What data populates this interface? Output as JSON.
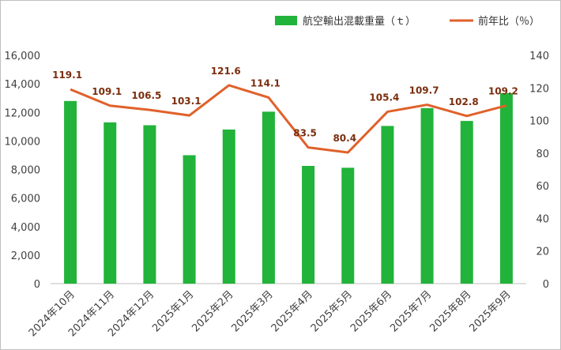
{
  "chart_data": {
    "type": "bar+line",
    "categories": [
      "2024年10月",
      "2024年11月",
      "2024年12月",
      "2025年1月",
      "2025年2月",
      "2025年3月",
      "2025年4月",
      "2025年5月",
      "2025年6月",
      "2025年7月",
      "2025年8月",
      "2025年9月"
    ],
    "series": [
      {
        "name": "航空輸出混載重量（ｔ）",
        "type": "bar",
        "axis": "left",
        "color": "#22b33a",
        "values": [
          12800,
          11300,
          11100,
          9000,
          10800,
          12050,
          8250,
          8120,
          11050,
          12300,
          11400,
          13350
        ]
      },
      {
        "name": "前年比（％）",
        "type": "line",
        "axis": "right",
        "color": "#e0612a",
        "values": [
          119.1,
          109.1,
          106.5,
          103.1,
          121.6,
          114.1,
          83.5,
          80.4,
          105.4,
          109.7,
          102.8,
          109.2
        ],
        "labels": [
          "119.1",
          "109.1",
          "106.5",
          "103.1",
          "121.6",
          "114.1",
          "83.5",
          "80.4",
          "105.4",
          "109.7",
          "102.8",
          "109.2"
        ]
      }
    ],
    "left_axis": {
      "ylim": [
        0,
        16000
      ],
      "ticks": [
        0,
        2000,
        4000,
        6000,
        8000,
        10000,
        12000,
        14000,
        16000
      ],
      "tick_labels": [
        "0",
        "2,000",
        "4,000",
        "6,000",
        "8,000",
        "10,000",
        "12,000",
        "14,000",
        "16,000"
      ]
    },
    "right_axis": {
      "ylim": [
        0,
        140
      ],
      "ticks": [
        0,
        20,
        40,
        60,
        80,
        100,
        120,
        140
      ],
      "tick_labels": [
        "0",
        "20",
        "40",
        "60",
        "80",
        "100",
        "120",
        "140"
      ]
    },
    "grid": false,
    "legend": "top-right"
  }
}
